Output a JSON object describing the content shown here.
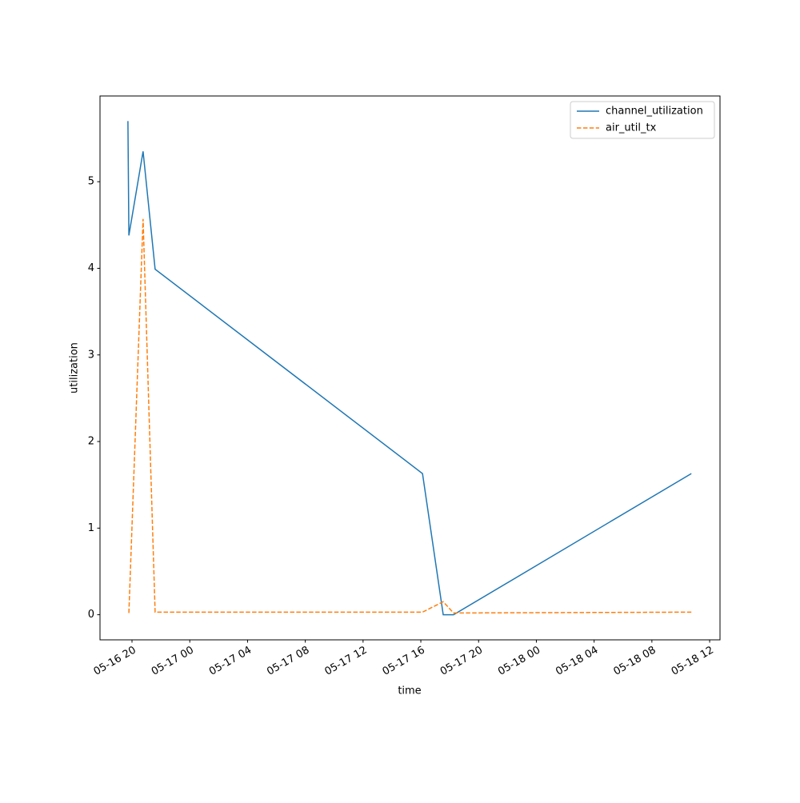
{
  "chart_data": {
    "type": "line",
    "x": [
      "05-16 19:43",
      "05-16 19:47",
      "05-16 20:46",
      "05-16 21:36",
      "05-17 16:07",
      "05-17 17:33",
      "05-17 18:16",
      "05-18 10:44"
    ],
    "series": [
      {
        "name": "channel_utilization",
        "color": "#1f77b4",
        "style": "solid",
        "values": [
          5.7,
          4.38,
          5.35,
          3.99,
          1.63,
          0.0,
          0.0,
          1.63
        ]
      },
      {
        "name": "air_util_tx",
        "color": "#ff7f0e",
        "style": "dashed",
        "values": [
          null,
          0.02,
          4.57,
          0.03,
          0.03,
          0.15,
          0.02,
          0.03
        ]
      }
    ],
    "xlabel": "time",
    "ylabel": "utilization",
    "xlim": [
      "05-16 17:47",
      "05-18 12:43"
    ],
    "xticks": [
      "05-16 20",
      "05-17 00",
      "05-17 04",
      "05-17 08",
      "05-17 12",
      "05-17 16",
      "05-17 20",
      "05-18 00",
      "05-18 04",
      "05-18 08",
      "05-18 12"
    ],
    "ylim": [
      -0.29,
      5.99
    ],
    "yticks": [
      0,
      1,
      2,
      3,
      4,
      5
    ],
    "legend": "upper right"
  }
}
